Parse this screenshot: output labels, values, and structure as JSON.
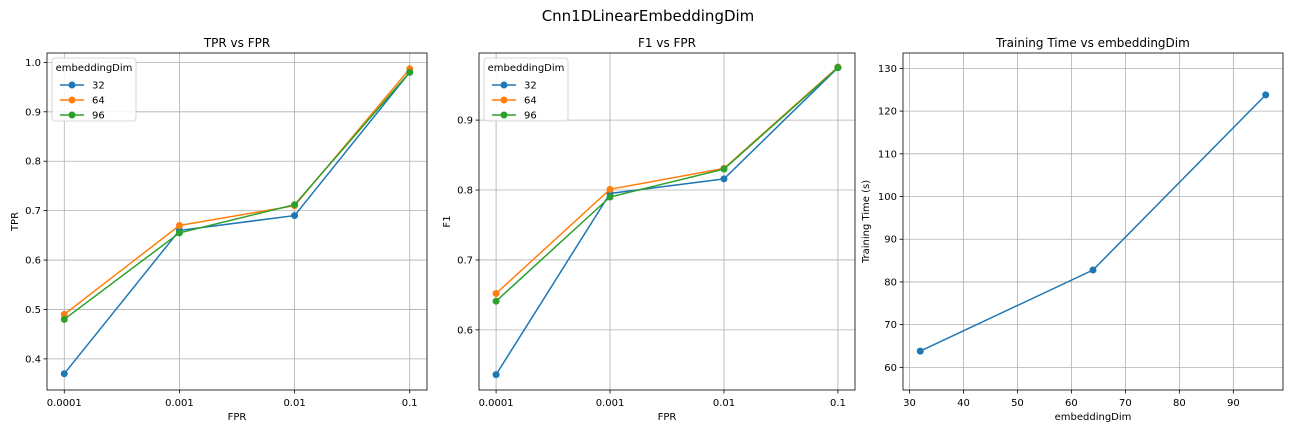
{
  "figure_title": "Cnn1DLinearEmbeddingDim",
  "colors": {
    "s32": "#1f77b4",
    "s64": "#ff7f0e",
    "s96": "#2ca02c"
  },
  "chart_data": [
    {
      "type": "line",
      "title": "TPR vs FPR",
      "xlabel": "FPR",
      "ylabel": "TPR",
      "x_scale": "categorical",
      "categories": [
        "0.0001",
        "0.001",
        "0.01",
        "0.1"
      ],
      "yticks": [
        "0.4",
        "0.5",
        "0.6",
        "0.7",
        "0.8",
        "0.9",
        "1.0"
      ],
      "ylim": [
        0.337,
        1.019
      ],
      "grid": true,
      "legend": {
        "title": "embeddingDim",
        "position": "upper-left"
      },
      "series": [
        {
          "name": "32",
          "color": "#1f77b4",
          "values": [
            0.37,
            0.66,
            0.69,
            0.98
          ]
        },
        {
          "name": "64",
          "color": "#ff7f0e",
          "values": [
            0.49,
            0.67,
            0.71,
            0.987
          ]
        },
        {
          "name": "96",
          "color": "#2ca02c",
          "values": [
            0.48,
            0.655,
            0.712,
            0.98
          ]
        }
      ]
    },
    {
      "type": "line",
      "title": "F1 vs FPR",
      "xlabel": "FPR",
      "ylabel": "F1",
      "x_scale": "categorical",
      "categories": [
        "0.0001",
        "0.001",
        "0.01",
        "0.1"
      ],
      "yticks": [
        "0.6",
        "0.7",
        "0.8",
        "0.9"
      ],
      "ylim": [
        0.514,
        0.996
      ],
      "grid": true,
      "legend": {
        "title": "embeddingDim",
        "position": "upper-left"
      },
      "series": [
        {
          "name": "32",
          "color": "#1f77b4",
          "values": [
            0.536,
            0.795,
            0.816,
            0.975
          ]
        },
        {
          "name": "64",
          "color": "#ff7f0e",
          "values": [
            0.652,
            0.801,
            0.831,
            0.976
          ]
        },
        {
          "name": "96",
          "color": "#2ca02c",
          "values": [
            0.641,
            0.79,
            0.83,
            0.975
          ]
        }
      ]
    },
    {
      "type": "line",
      "title": "Training Time vs embeddingDim",
      "xlabel": "embeddingDim",
      "ylabel": "Training Time (s)",
      "x_scale": "linear",
      "xticks": [
        30,
        40,
        50,
        60,
        70,
        80,
        90
      ],
      "xlim": [
        28.8,
        99.2
      ],
      "yticks": [
        60,
        70,
        80,
        90,
        100,
        110,
        120,
        130
      ],
      "ylim": [
        54.7,
        133.6
      ],
      "grid": true,
      "series": [
        {
          "color": "#1f77b4",
          "x": [
            32,
            64,
            96
          ],
          "values": [
            63.8,
            82.8,
            123.8
          ]
        }
      ]
    }
  ]
}
